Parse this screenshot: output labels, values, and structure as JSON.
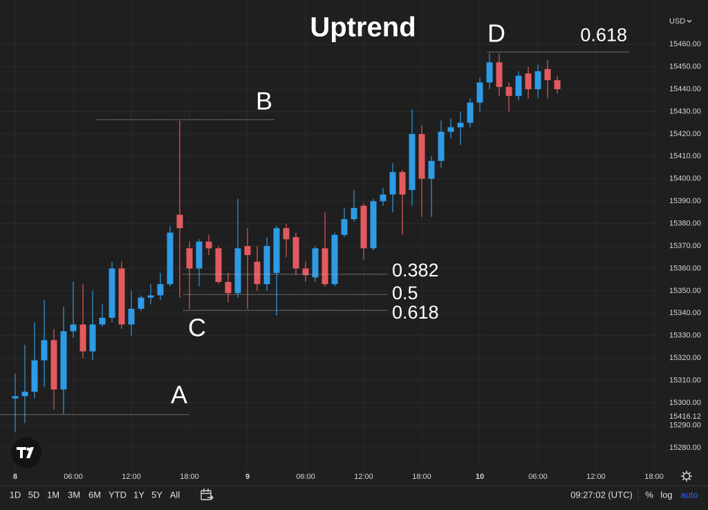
{
  "chart_data": {
    "type": "candlestick",
    "title": "Uptrend",
    "currency": "USD",
    "x": [
      0,
      1,
      2,
      3,
      4,
      5,
      6,
      7,
      8,
      9,
      10,
      11,
      12,
      13,
      14,
      15,
      16,
      17,
      18,
      19,
      20,
      21,
      22,
      23,
      24,
      25,
      26,
      27,
      28,
      29,
      30,
      31,
      32,
      33,
      34,
      35,
      36,
      37,
      38,
      39,
      40,
      41,
      42,
      43,
      44,
      45,
      46,
      47,
      48,
      49,
      50,
      51,
      52,
      53,
      54,
      55,
      56
    ],
    "open": [
      15302,
      15303,
      15305,
      15319,
      15328,
      15306,
      15332,
      15335,
      15323,
      15335,
      15338,
      15360,
      15335,
      15342,
      15347,
      15348,
      15353,
      15384,
      15369,
      15360,
      15372,
      15369,
      15354,
      15349,
      15370,
      15363,
      15353,
      15358,
      15378,
      15374,
      15360,
      15356,
      15369,
      15353,
      15375,
      15382,
      15388,
      15369,
      15390,
      15393,
      15403,
      15395,
      15420,
      15400,
      15408,
      15421,
      15423,
      15425,
      15434,
      15443,
      15452,
      15441,
      15437,
      15447,
      15440,
      15449,
      15444
    ],
    "high": [
      15313,
      15326,
      15336,
      15346,
      15333,
      15343,
      15354,
      15353,
      15350,
      15344,
      15363,
      15363,
      15350,
      15348,
      15353,
      15358,
      15379,
      15426,
      15372,
      15373,
      15375,
      15370,
      15358,
      15391,
      15378,
      15370,
      15374,
      15379,
      15380,
      15376,
      15363,
      15370,
      15385,
      15376,
      15387,
      15395,
      15389,
      15391,
      15396,
      15407,
      15404,
      15431,
      15424,
      15410,
      15426,
      15427,
      15430,
      15436,
      15445,
      15456,
      15456,
      15443,
      15448,
      15450,
      15451,
      15453,
      15446
    ],
    "low": [
      15287,
      15291,
      15302,
      15307,
      15297,
      15295,
      15329,
      15320,
      15319,
      15334,
      15336,
      15333,
      15330,
      15341,
      15344,
      15346,
      15352,
      15347,
      15342,
      15352,
      15366,
      15353,
      15345,
      15347,
      15342,
      15350,
      15350,
      15339,
      15365,
      15357,
      15354,
      15354,
      15352,
      15352,
      15374,
      15381,
      15364,
      15368,
      15388,
      15385,
      15375,
      15388,
      15383,
      15383,
      15405,
      15418,
      15415,
      15423,
      15430,
      15440,
      15437,
      15430,
      15435,
      15436,
      15436,
      15436,
      15438
    ],
    "close": [
      15303,
      15305,
      15319,
      15328,
      15306,
      15332,
      15335,
      15323,
      15335,
      15338,
      15360,
      15335,
      15342,
      15347,
      15348,
      15353,
      15376,
      15378,
      15360,
      15372,
      15369,
      15354,
      15349,
      15369,
      15366,
      15353,
      15370,
      15378,
      15373,
      15360,
      15357,
      15369,
      15353,
      15375,
      15382,
      15387,
      15369,
      15390,
      15393,
      15403,
      15393,
      15420,
      15400,
      15408,
      15421,
      15423,
      15425,
      15434,
      15443,
      15452,
      15441,
      15437,
      15446,
      15440,
      15448,
      15444,
      15440
    ],
    "up_color": "#2e9be6",
    "down_color": "#e25a5f",
    "grid": true,
    "xlim": [
      -1.57,
      66.64
    ],
    "ylim": [
      15270.1,
      15479.8
    ],
    "xticks": [
      {
        "value": 0,
        "label": "8"
      },
      {
        "value": 6,
        "label": "06:00"
      },
      {
        "value": 12,
        "label": "12:00"
      },
      {
        "value": 18,
        "label": "18:00"
      },
      {
        "value": 24,
        "label": "9"
      },
      {
        "value": 30,
        "label": "06:00"
      },
      {
        "value": 36,
        "label": "12:00"
      },
      {
        "value": 42,
        "label": "18:00"
      },
      {
        "value": 48,
        "label": "10"
      },
      {
        "value": 54,
        "label": "06:00"
      },
      {
        "value": 60,
        "label": "12:00"
      },
      {
        "value": 66,
        "label": "18:00"
      }
    ],
    "yticks": [
      {
        "value": 15280,
        "label": "15280.00"
      },
      {
        "value": 15290,
        "label": "15290.00"
      },
      {
        "value": 15300,
        "label": "15300.00"
      },
      {
        "value": 15310,
        "label": "15310.00"
      },
      {
        "value": 15320,
        "label": "15320.00"
      },
      {
        "value": 15330,
        "label": "15330.00"
      },
      {
        "value": 15340,
        "label": "15340.00"
      },
      {
        "value": 15350,
        "label": "15350.00"
      },
      {
        "value": 15360,
        "label": "15360.00"
      },
      {
        "value": 15370,
        "label": "15370.00"
      },
      {
        "value": 15380,
        "label": "15380.00"
      },
      {
        "value": 15390,
        "label": "15390.00"
      },
      {
        "value": 15400,
        "label": "15400.00"
      },
      {
        "value": 15410,
        "label": "15410.00"
      },
      {
        "value": 15420,
        "label": "15420.00"
      },
      {
        "value": 15430,
        "label": "15430.00"
      },
      {
        "value": 15440,
        "label": "15440.00"
      },
      {
        "value": 15450,
        "label": "15450.00"
      },
      {
        "value": 15460,
        "label": "15460.00"
      }
    ],
    "price_marker": "15416.12",
    "annotations": [
      {
        "label": "A",
        "value": 15294.8
      },
      {
        "label": "B",
        "value": 15426.4
      },
      {
        "label": "C",
        "value": 15341.3
      },
      {
        "label": "D",
        "value": 15456.6
      }
    ],
    "fib_levels": [
      {
        "label": "0.382",
        "value": 15357.4
      },
      {
        "label": "0.5",
        "value": 15348.4
      },
      {
        "label": "0.618",
        "value": 15341.3
      },
      {
        "label": "0.618",
        "value": 15456.6
      }
    ]
  },
  "toolbar": {
    "ranges": [
      "1D",
      "5D",
      "1M",
      "3M",
      "6M",
      "YTD",
      "1Y",
      "5Y",
      "All"
    ],
    "time": "09:27:02 (UTC)",
    "percent": "%",
    "log": "log",
    "auto": "auto"
  }
}
